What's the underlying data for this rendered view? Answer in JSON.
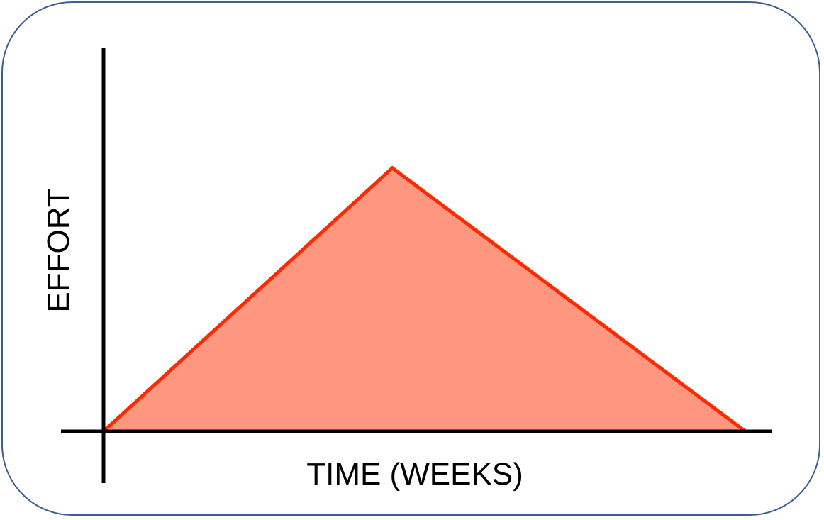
{
  "chart_data": {
    "type": "area",
    "title": "",
    "xlabel": "TIME (WEEKS)",
    "ylabel": "EFFORT",
    "grid": false,
    "legend": "none",
    "xlim": [
      0,
      1
    ],
    "ylim": [
      0,
      1
    ],
    "series": [
      {
        "x": [
          0,
          0.45,
          1
        ],
        "values": [
          0,
          0.75,
          0
        ]
      }
    ],
    "colors": {
      "line": "#ff2a00",
      "fill": "#ff9680",
      "axes": "#000000",
      "frame_border": "#3d5f8f"
    }
  }
}
